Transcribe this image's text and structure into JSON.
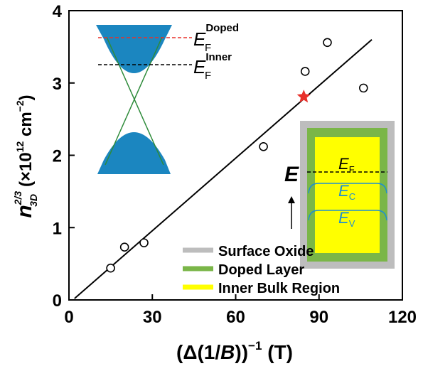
{
  "chart_data": {
    "type": "scatter",
    "xlabel": {
      "pre": "(Δ(1/",
      "var": "B",
      "post": "))",
      "sup": "−1",
      "unit": " (T)"
    },
    "ylabel": {
      "var": "n",
      "sub": "3D",
      "sup": "2/3",
      "unit": "(×10",
      "unit_sup": "12",
      "unit2": " cm",
      "unit2_sup": "−2",
      "close": ")"
    },
    "xlim": [
      0,
      120
    ],
    "xticks": [
      0,
      30,
      60,
      90,
      120
    ],
    "ylim": [
      0,
      4
    ],
    "yticks": [
      0,
      1,
      2,
      3,
      4
    ],
    "series": [
      {
        "marker": "circle",
        "color": "#000000",
        "x": [
          15,
          20,
          27,
          70,
          85,
          93,
          106
        ],
        "values": [
          0.44,
          0.73,
          0.79,
          2.12,
          3.16,
          3.56,
          2.93
        ]
      },
      {
        "marker": "star",
        "color": "#e8302a",
        "x": [
          84.5
        ],
        "values": [
          2.81
        ]
      },
      {
        "marker": "line",
        "color": "#000000",
        "x": [
          2,
          109
        ],
        "values": [
          0.02,
          3.6
        ]
      }
    ],
    "band_inset": {
      "doped": {
        "main": "E",
        "sub": "F",
        "sup": "Doped",
        "color": "#e8302a"
      },
      "inner": {
        "main": "E",
        "sub": "F",
        "sup": "Inner",
        "color": "#000000"
      }
    },
    "layer_inset": {
      "axis": "E",
      "levels": [
        {
          "main": "E",
          "sub": "F",
          "color": "#000000"
        },
        {
          "main": "E",
          "sub": "C",
          "color": "#1e8fd0"
        },
        {
          "main": "E",
          "sub": "V",
          "color": "#1e8fd0"
        }
      ]
    },
    "legend": [
      {
        "label": "Surface Oxide",
        "color": "#bdbdbd"
      },
      {
        "label": "Doped Layer",
        "color": "#7ab648"
      },
      {
        "label": "Inner Bulk Region",
        "color": "#ffff00"
      }
    ]
  }
}
